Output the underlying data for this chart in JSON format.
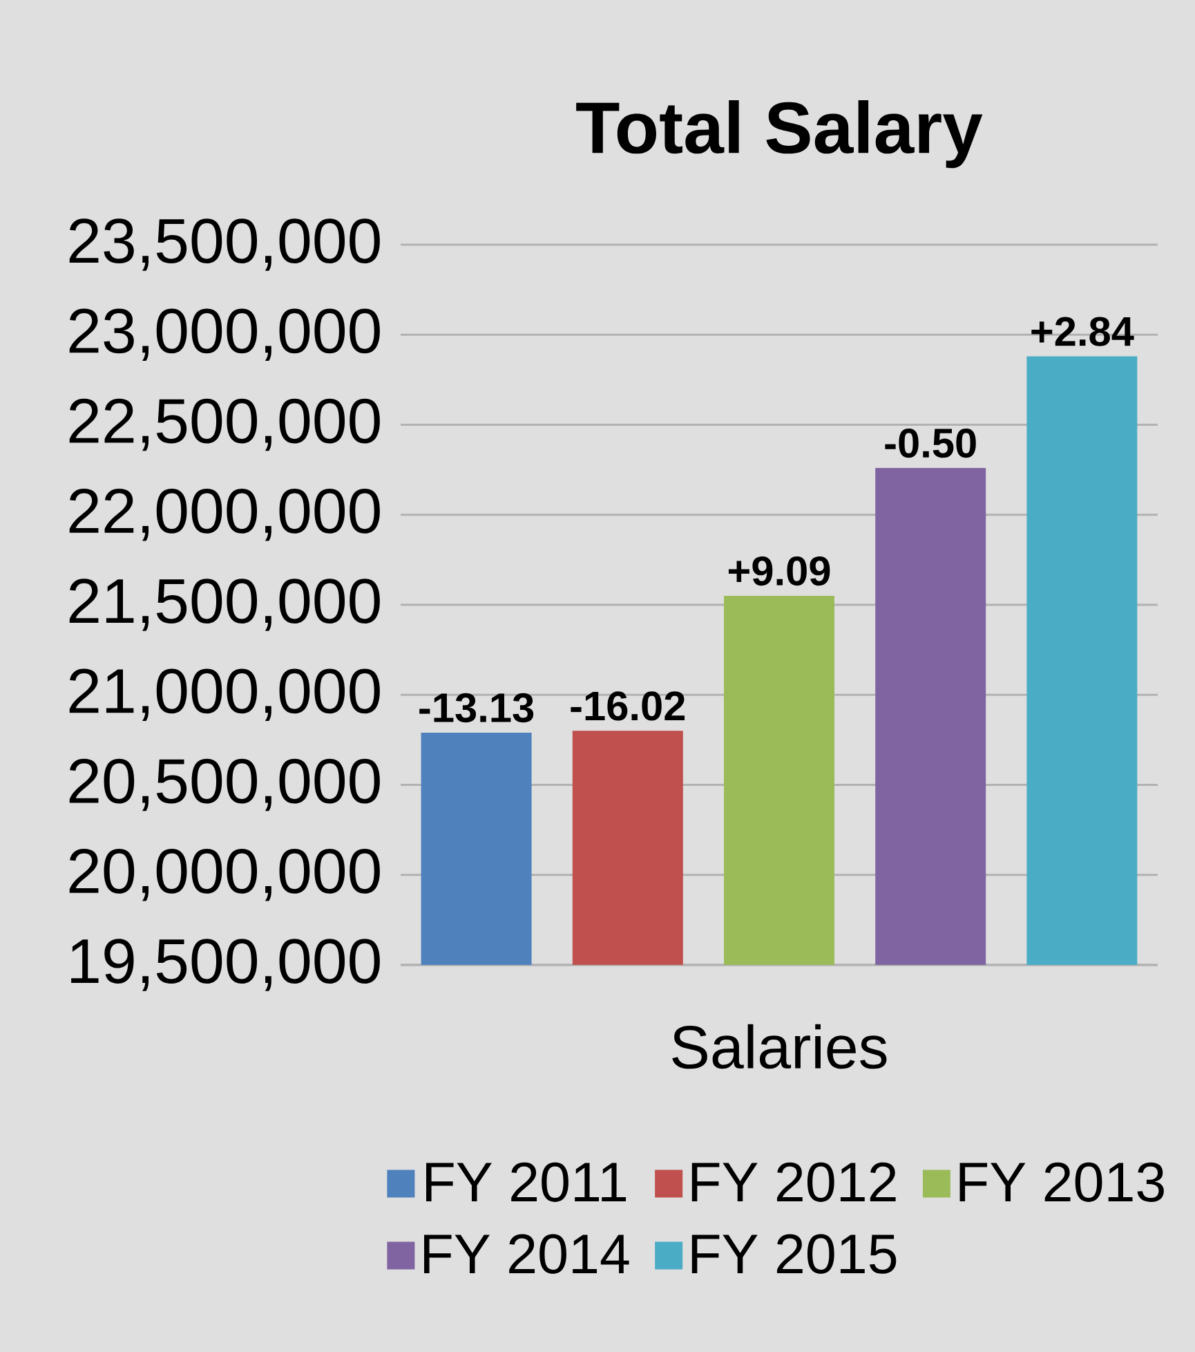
{
  "chart_data": {
    "type": "bar",
    "title": "Total Salary",
    "xlabel": "Salaries",
    "categories": [
      null,
      null,
      null,
      null,
      null
    ],
    "series": [
      {
        "name": "FY 2011",
        "color": "#4f81bd",
        "values": [
          20790000,
          null,
          null,
          null,
          null
        ]
      },
      {
        "name": "FY 2012",
        "color": "#c0504d",
        "values": [
          null,
          20800000,
          null,
          null,
          null
        ]
      },
      {
        "name": "FY 2013",
        "color": "#9bbb59",
        "values": [
          null,
          null,
          21550000,
          null,
          null
        ]
      },
      {
        "name": "FY 2014",
        "color": "#8064a2",
        "values": [
          null,
          null,
          null,
          22260000,
          null
        ]
      },
      {
        "name": "FY 2015",
        "color": "#4bacc6",
        "values": [
          null,
          null,
          null,
          null,
          22880000
        ]
      }
    ],
    "annotations": [
      "-13.13",
      "-16.02",
      "+9.09",
      "-0.50",
      "+2.84"
    ],
    "ylim": [
      19500000,
      23500000
    ],
    "yticks": [
      {
        "value": 19500000,
        "label": "19,500,000"
      },
      {
        "value": 20000000,
        "label": "20,000,000"
      },
      {
        "value": 20500000,
        "label": "20,500,000"
      },
      {
        "value": 21000000,
        "label": "21,000,000"
      },
      {
        "value": 21500000,
        "label": "21,500,000"
      },
      {
        "value": 22000000,
        "label": "22,000,000"
      },
      {
        "value": 22500000,
        "label": "22,500,000"
      },
      {
        "value": 23000000,
        "label": "23,000,000"
      },
      {
        "value": 23500000,
        "label": "23,500,000"
      }
    ],
    "grid": "y",
    "legend": "bottom"
  }
}
